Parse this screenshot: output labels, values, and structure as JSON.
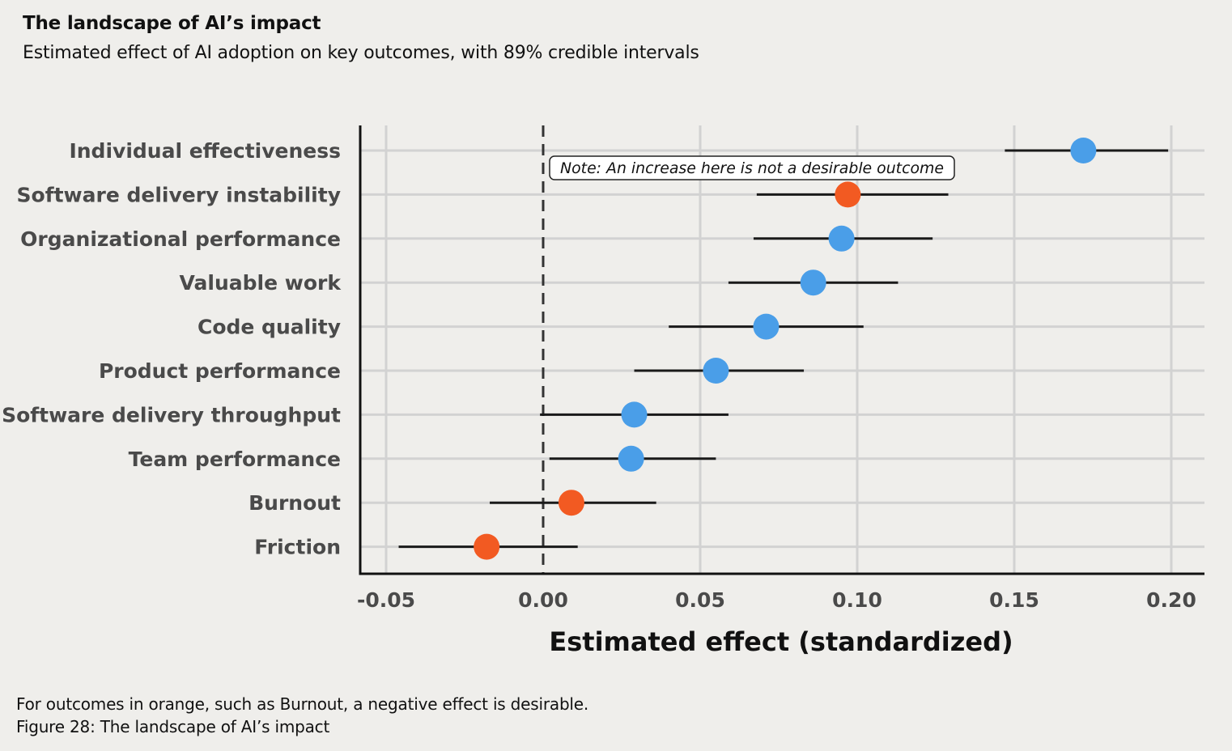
{
  "header": {
    "title": "The landscape of AI’s impact",
    "subtitle": "Estimated effect of AI adoption on key outcomes, with 89% credible intervals"
  },
  "footer": {
    "note": "For outcomes in orange, such as Burnout, a negative effect is desirable.",
    "caption": "Figure 28: The landscape of AI’s impact"
  },
  "colors": {
    "positive_desirable": "#4a9ee8",
    "negative_desirable": "#f25a22",
    "interval": "#1a1a1a",
    "grid": "#d2d2d2",
    "background": "#efeeeb"
  },
  "chart_data": {
    "type": "scatter",
    "subtype": "dot-and-interval",
    "xlabel": "Estimated effect (standardized)",
    "xlim": [
      -0.06,
      0.21
    ],
    "xticks": [
      -0.05,
      0.0,
      0.05,
      0.1,
      0.15,
      0.2
    ],
    "xtick_labels": [
      "-0.05",
      "0.00",
      "0.05",
      "0.10",
      "0.15",
      "0.20"
    ],
    "zero_line": "dashed",
    "grid": true,
    "annotation": {
      "text": "Note: An increase here is not a desirable outcome",
      "target": "Software delivery instability"
    },
    "rows": [
      {
        "label": "Individual effectiveness",
        "estimate": 0.172,
        "lower": 0.147,
        "upper": 0.199,
        "color": "blue"
      },
      {
        "label": "Software delivery instability",
        "estimate": 0.097,
        "lower": 0.068,
        "upper": 0.129,
        "color": "orange"
      },
      {
        "label": "Organizational performance",
        "estimate": 0.095,
        "lower": 0.067,
        "upper": 0.124,
        "color": "blue"
      },
      {
        "label": "Valuable work",
        "estimate": 0.086,
        "lower": 0.059,
        "upper": 0.113,
        "color": "blue"
      },
      {
        "label": "Code quality",
        "estimate": 0.071,
        "lower": 0.04,
        "upper": 0.102,
        "color": "blue"
      },
      {
        "label": "Product performance",
        "estimate": 0.055,
        "lower": 0.029,
        "upper": 0.083,
        "color": "blue"
      },
      {
        "label": "Software delivery throughput",
        "estimate": 0.029,
        "lower": -0.001,
        "upper": 0.059,
        "color": "blue"
      },
      {
        "label": "Team performance",
        "estimate": 0.028,
        "lower": 0.002,
        "upper": 0.055,
        "color": "blue"
      },
      {
        "label": "Burnout",
        "estimate": 0.009,
        "lower": -0.017,
        "upper": 0.036,
        "color": "orange"
      },
      {
        "label": "Friction",
        "estimate": -0.018,
        "lower": -0.046,
        "upper": 0.011,
        "color": "orange"
      }
    ]
  }
}
